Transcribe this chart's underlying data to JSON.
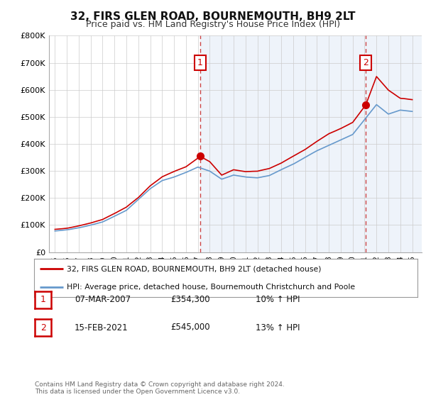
{
  "title": "32, FIRS GLEN ROAD, BOURNEMOUTH, BH9 2LT",
  "subtitle": "Price paid vs. HM Land Registry's House Price Index (HPI)",
  "bg_color": "#ffffff",
  "plot_bg_color": "#eef3fa",
  "plot_bg_left_color": "#ffffff",
  "grid_color": "#cccccc",
  "red_color": "#cc0000",
  "blue_color": "#6699cc",
  "ylim": [
    0,
    800000
  ],
  "yticks": [
    0,
    100000,
    200000,
    300000,
    400000,
    500000,
    600000,
    700000,
    800000
  ],
  "ytick_labels": [
    "£0",
    "£100K",
    "£200K",
    "£300K",
    "£400K",
    "£500K",
    "£600K",
    "£700K",
    "£800K"
  ],
  "vline1_year": 2007.2,
  "vline2_year": 2021.1,
  "marker1_year": 2007.2,
  "marker1_val": 354300,
  "marker2_year": 2021.1,
  "marker2_val": 545000,
  "legend_red": "32, FIRS GLEN ROAD, BOURNEMOUTH, BH9 2LT (detached house)",
  "legend_blue": "HPI: Average price, detached house, Bournemouth Christchurch and Poole",
  "table_rows": [
    {
      "num": "1",
      "date": "07-MAR-2007",
      "price": "£354,300",
      "change": "10% ↑ HPI"
    },
    {
      "num": "2",
      "date": "15-FEB-2021",
      "price": "£545,000",
      "change": "13% ↑ HPI"
    }
  ],
  "footer": "Contains HM Land Registry data © Crown copyright and database right 2024.\nThis data is licensed under the Open Government Licence v3.0.",
  "xtick_years": [
    1995,
    1996,
    1997,
    1998,
    1999,
    2000,
    2001,
    2002,
    2003,
    2004,
    2005,
    2006,
    2007,
    2008,
    2009,
    2010,
    2011,
    2012,
    2013,
    2014,
    2015,
    2016,
    2017,
    2018,
    2019,
    2020,
    2021,
    2022,
    2023,
    2024,
    2025
  ]
}
